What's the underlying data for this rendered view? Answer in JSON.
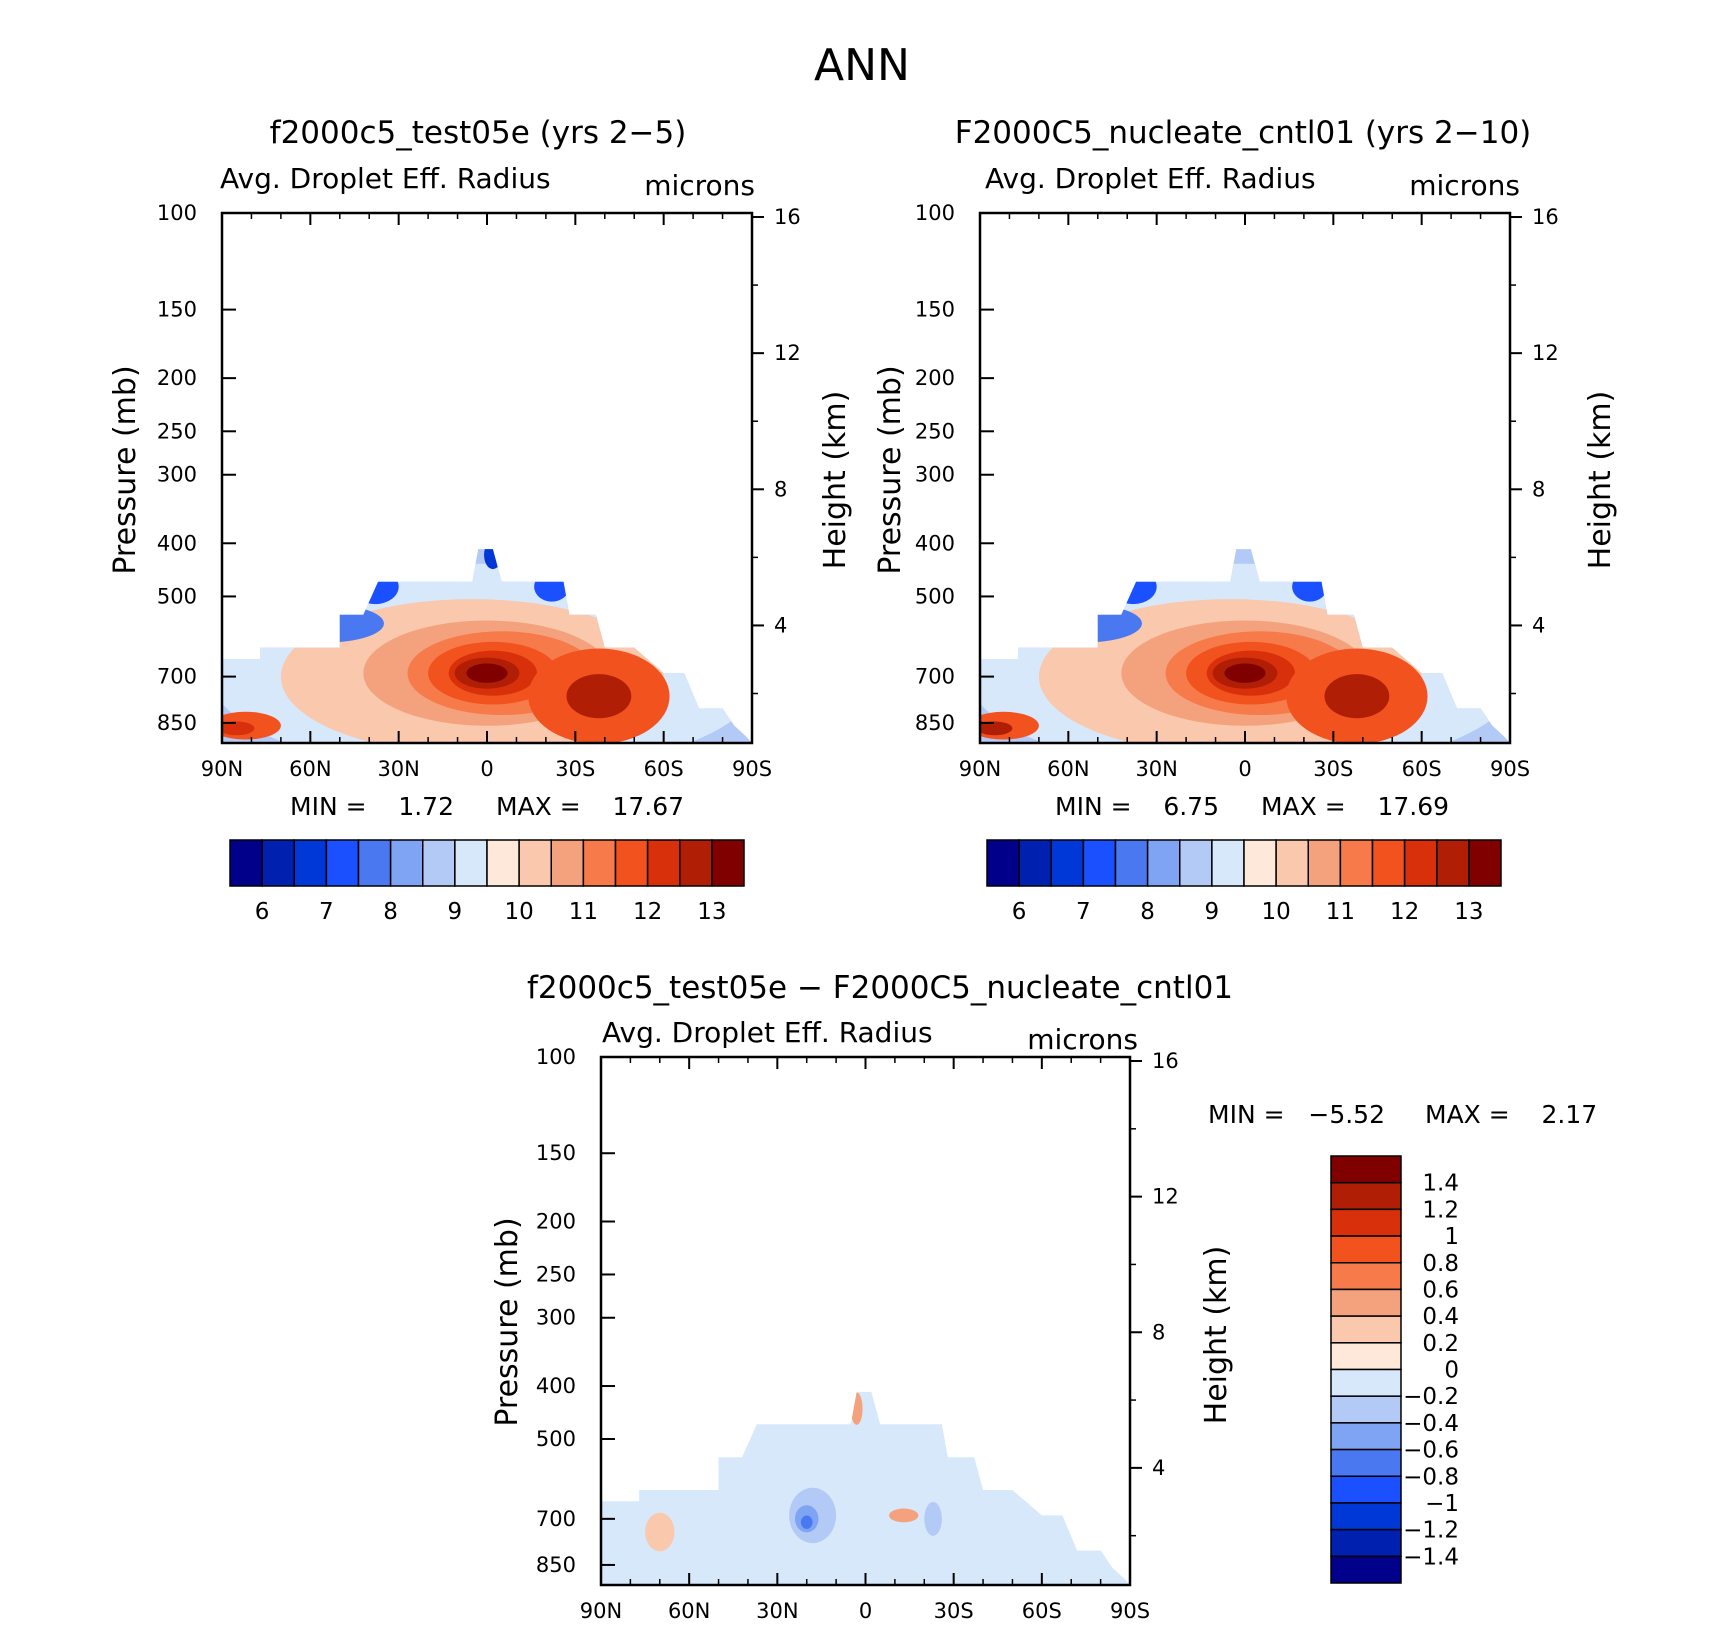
{
  "figure": {
    "title": "ANN"
  },
  "chart_data": [
    {
      "type": "heatmap",
      "id": "panel1",
      "title": "f2000c5_test05e (yrs 2−5)",
      "subtitle": "Avg. Droplet Eff. Radius",
      "units": "microns",
      "ylabel": "Pressure (mb)",
      "y2label": "Height (km)",
      "x_ticks": [
        "90N",
        "60N",
        "30N",
        "0",
        "30S",
        "60S",
        "90S"
      ],
      "y_ticks": [
        "100",
        "150",
        "200",
        "250",
        "300",
        "400",
        "500",
        "700",
        "850"
      ],
      "y2_ticks": [
        "16",
        "12",
        "8",
        "4"
      ],
      "min_text": "MIN =    1.72",
      "max_text": "MAX =    17.67",
      "colorbar": {
        "orientation": "horizontal",
        "labels": [
          "6",
          "7",
          "8",
          "9",
          "10",
          "11",
          "12",
          "13"
        ],
        "colors": [
          "#00008b",
          "#0020b0",
          "#0038d8",
          "#1a50ff",
          "#4a78f0",
          "#80a4f4",
          "#b4caf6",
          "#d8e8fb",
          "#fde8d9",
          "#f9c8ad",
          "#f4a27e",
          "#f77a4a",
          "#f2521e",
          "#d8300a",
          "#b01e05",
          "#800000"
        ]
      },
      "blobs": [
        {
          "color": 7,
          "lon": 0,
          "p": 680,
          "rx": 95,
          "rp": 300
        },
        {
          "color": 9,
          "lon": -5,
          "p": 700,
          "rx": 65,
          "rp": 220
        },
        {
          "color": 10,
          "lon": 0,
          "p": 690,
          "rx": 42,
          "rp": 150
        },
        {
          "color": 11,
          "lon": 5,
          "p": 690,
          "rx": 32,
          "rp": 120
        },
        {
          "color": 12,
          "lon": 2,
          "p": 690,
          "rx": 22,
          "rp": 90
        },
        {
          "color": 13,
          "lon": 2,
          "p": 690,
          "rx": 15,
          "rp": 65
        },
        {
          "color": 14,
          "lon": 0,
          "p": 690,
          "rx": 11,
          "rp": 45
        },
        {
          "color": 15,
          "lon": 0,
          "p": 690,
          "rx": 7,
          "rp": 28
        },
        {
          "color": 12,
          "lon": 38,
          "p": 760,
          "rx": 24,
          "rp": 150
        },
        {
          "color": 14,
          "lon": 38,
          "p": 760,
          "rx": 11,
          "rp": 70
        },
        {
          "color": 12,
          "lon": -82,
          "p": 860,
          "rx": 12,
          "rp": 50
        },
        {
          "color": 13,
          "lon": -85,
          "p": 870,
          "rx": 6,
          "rp": 25
        },
        {
          "color": 4,
          "lon": -55,
          "p": 560,
          "rx": 20,
          "rp": 45
        },
        {
          "color": 3,
          "lon": -38,
          "p": 480,
          "rx": 8,
          "rp": 35
        },
        {
          "color": 2,
          "lon": 2,
          "p": 420,
          "rx": 3,
          "rp": 25
        },
        {
          "color": 3,
          "lon": 22,
          "p": 480,
          "rx": 6,
          "rp": 30
        }
      ]
    },
    {
      "type": "heatmap",
      "id": "panel2",
      "title": "F2000C5_nucleate_cntl01 (yrs 2−10)",
      "subtitle": "Avg. Droplet Eff. Radius",
      "units": "microns",
      "ylabel": "Pressure (mb)",
      "y2label": "Height (km)",
      "x_ticks": [
        "90N",
        "60N",
        "30N",
        "0",
        "30S",
        "60S",
        "90S"
      ],
      "y_ticks": [
        "100",
        "150",
        "200",
        "250",
        "300",
        "400",
        "500",
        "700",
        "850"
      ],
      "y2_ticks": [
        "16",
        "12",
        "8",
        "4"
      ],
      "min_text": "MIN =    6.75",
      "max_text": "MAX =    17.69",
      "colorbar": {
        "orientation": "horizontal",
        "labels": [
          "6",
          "7",
          "8",
          "9",
          "10",
          "11",
          "12",
          "13"
        ],
        "colors": [
          "#00008b",
          "#0020b0",
          "#0038d8",
          "#1a50ff",
          "#4a78f0",
          "#80a4f4",
          "#b4caf6",
          "#d8e8fb",
          "#fde8d9",
          "#f9c8ad",
          "#f4a27e",
          "#f77a4a",
          "#f2521e",
          "#d8300a",
          "#b01e05",
          "#800000"
        ]
      },
      "blobs": [
        {
          "color": 7,
          "lon": 0,
          "p": 680,
          "rx": 95,
          "rp": 300
        },
        {
          "color": 9,
          "lon": -5,
          "p": 700,
          "rx": 65,
          "rp": 220
        },
        {
          "color": 10,
          "lon": 0,
          "p": 690,
          "rx": 42,
          "rp": 150
        },
        {
          "color": 11,
          "lon": 5,
          "p": 690,
          "rx": 32,
          "rp": 120
        },
        {
          "color": 12,
          "lon": 2,
          "p": 690,
          "rx": 22,
          "rp": 90
        },
        {
          "color": 13,
          "lon": 2,
          "p": 690,
          "rx": 15,
          "rp": 65
        },
        {
          "color": 14,
          "lon": 0,
          "p": 690,
          "rx": 11,
          "rp": 45
        },
        {
          "color": 15,
          "lon": 0,
          "p": 690,
          "rx": 7,
          "rp": 28
        },
        {
          "color": 12,
          "lon": 38,
          "p": 760,
          "rx": 24,
          "rp": 150
        },
        {
          "color": 14,
          "lon": 38,
          "p": 760,
          "rx": 11,
          "rp": 70
        },
        {
          "color": 12,
          "lon": -82,
          "p": 860,
          "rx": 12,
          "rp": 50
        },
        {
          "color": 14,
          "lon": -85,
          "p": 870,
          "rx": 6,
          "rp": 25
        },
        {
          "color": 4,
          "lon": -55,
          "p": 560,
          "rx": 20,
          "rp": 45
        },
        {
          "color": 3,
          "lon": -38,
          "p": 480,
          "rx": 8,
          "rp": 35
        },
        {
          "color": 3,
          "lon": 22,
          "p": 480,
          "rx": 6,
          "rp": 30
        }
      ]
    },
    {
      "type": "heatmap",
      "id": "panel3",
      "title": "f2000c5_test05e − F2000C5_nucleate_cntl01",
      "subtitle": "Avg. Droplet Eff. Radius",
      "units": "microns",
      "ylabel": "Pressure (mb)",
      "y2label": "Height (km)",
      "x_ticks": [
        "90N",
        "60N",
        "30N",
        "0",
        "30S",
        "60S",
        "90S"
      ],
      "y_ticks": [
        "100",
        "150",
        "200",
        "250",
        "300",
        "400",
        "500",
        "700",
        "850"
      ],
      "y2_ticks": [
        "16",
        "12",
        "8",
        "4"
      ],
      "min_text": "MIN =   −5.52",
      "max_text": "MAX =    2.17",
      "colorbar": {
        "orientation": "vertical",
        "labels": [
          "1.4",
          "1.2",
          "1",
          "0.8",
          "0.6",
          "0.4",
          "0.2",
          "0",
          "−0.2",
          "−0.4",
          "−0.6",
          "−0.8",
          "−1",
          "−1.2",
          "−1.4"
        ],
        "colors": [
          "#800000",
          "#b01e05",
          "#d8300a",
          "#f2521e",
          "#f77a4a",
          "#f4a27e",
          "#f9c8ad",
          "#fde8d9",
          "#d8e8fb",
          "#b4caf6",
          "#80a4f4",
          "#4a78f0",
          "#1a50ff",
          "#0038d8",
          "#0020b0",
          "#00008b"
        ]
      },
      "blobs": [
        {
          "color": 8,
          "lon": -40,
          "p": 650,
          "rx": 25,
          "rp": 100
        },
        {
          "color": 8,
          "lon": 20,
          "p": 750,
          "rx": 15,
          "rp": 150
        },
        {
          "color": 9,
          "lon": -18,
          "p": 690,
          "rx": 8,
          "rp": 80
        },
        {
          "color": 10,
          "lon": -20,
          "p": 700,
          "rx": 4,
          "rp": 40
        },
        {
          "color": 11,
          "lon": -20,
          "p": 710,
          "rx": 2,
          "rp": 20
        },
        {
          "color": 9,
          "lon": 23,
          "p": 700,
          "rx": 3,
          "rp": 50
        },
        {
          "color": 5,
          "lon": 13,
          "p": 690,
          "rx": 5,
          "rp": 20
        },
        {
          "color": 6,
          "lon": -70,
          "p": 740,
          "rx": 5,
          "rp": 60
        },
        {
          "color": 5,
          "lon": -3,
          "p": 440,
          "rx": 2,
          "rp": 30
        }
      ]
    }
  ]
}
